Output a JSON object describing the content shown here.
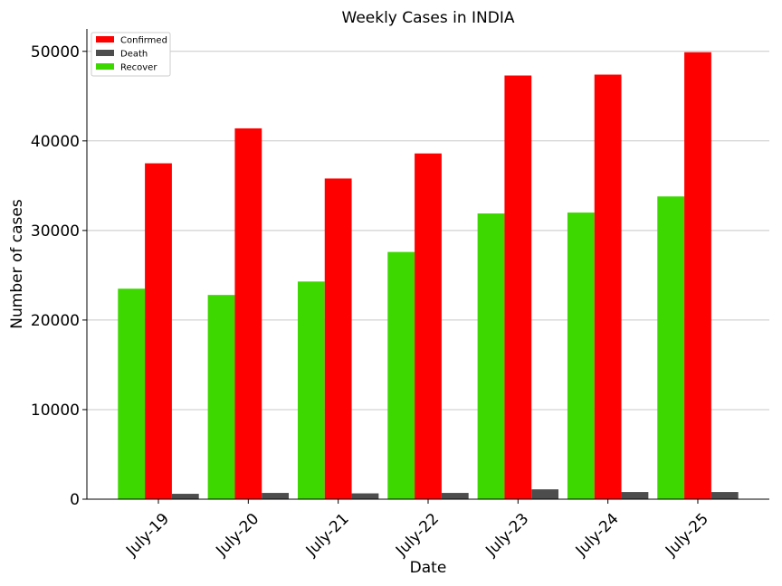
{
  "chart_data": {
    "type": "bar",
    "title": "Weekly Cases in INDIA",
    "xlabel": "Date",
    "ylabel": "Number of cases",
    "categories": [
      "July-19",
      "July-20",
      "July-21",
      "July-22",
      "July-23",
      "July-24",
      "July-25"
    ],
    "ylim": [
      0,
      52500
    ],
    "yticks": [
      0,
      10000,
      20000,
      30000,
      40000,
      50000
    ],
    "grid": "horizontal",
    "legend_position": "top-left",
    "series": [
      {
        "name": "Recover",
        "color": "#3dd800",
        "values": [
          23500,
          22800,
          24300,
          27600,
          31900,
          32000,
          33800
        ]
      },
      {
        "name": "Confirmed",
        "color": "#ff0000",
        "values": [
          37500,
          41400,
          35800,
          38600,
          47300,
          47400,
          49900
        ]
      },
      {
        "name": "Death",
        "color": "#4d4d4d",
        "values": [
          600,
          700,
          650,
          700,
          1100,
          800,
          800
        ]
      }
    ],
    "legend_order": [
      "Confirmed",
      "Death",
      "Recover"
    ]
  }
}
